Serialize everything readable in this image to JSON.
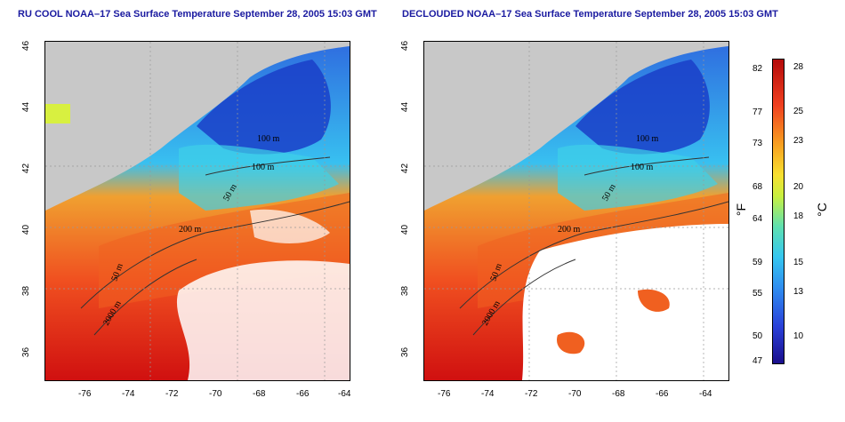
{
  "titles": {
    "left": "RU COOL NOAA–17 Sea Surface Temperature September 28, 2005 15:03 GMT",
    "right": "DECLOUDED NOAA–17 Sea Surface Temperature September 28, 2005 15:03 GMT"
  },
  "axes": {
    "lat_ticks": [
      "46",
      "44",
      "42",
      "40",
      "38",
      "36"
    ],
    "lon_ticks": [
      "-76",
      "-74",
      "-72",
      "-70",
      "-68",
      "-66",
      "-64"
    ]
  },
  "contour_labels": {
    "c100a": "100 m",
    "c100b": "100 m",
    "c50": "50 m",
    "c200": "200 m",
    "c50b": "50 m",
    "c2000": "2000 m"
  },
  "colorbar": {
    "fahrenheit_ticks": [
      "82",
      "77",
      "73",
      "68",
      "64",
      "59",
      "55",
      "50",
      "47"
    ],
    "celsius_ticks": [
      "28",
      "25",
      "23",
      "20",
      "18",
      "15",
      "13",
      "10"
    ],
    "fahrenheit_unit": "°F",
    "celsius_unit": "°C"
  }
}
